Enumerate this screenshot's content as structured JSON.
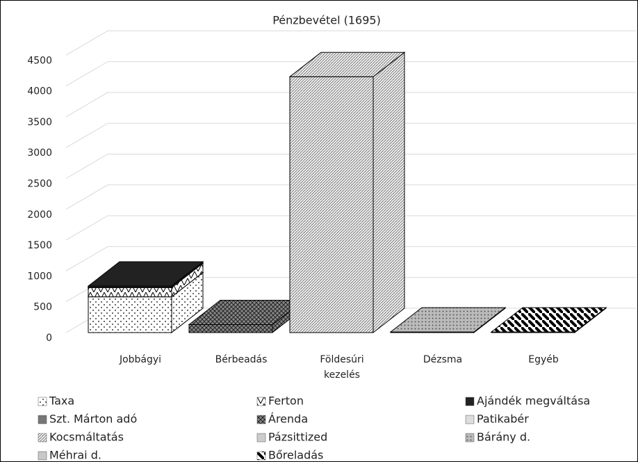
{
  "chart_data": {
    "type": "bar3d_stacked",
    "title": "Pénzbevétel (1695)",
    "categories": [
      "Jobbágyi",
      "Bérbeadás",
      "Földesúri kezelés",
      "Dézsma",
      "Egyéb"
    ],
    "series": [
      {
        "name": "Taxa",
        "color": "#ffffff",
        "values": [
          580,
          0,
          0,
          0,
          0
        ]
      },
      {
        "name": "Ferton",
        "color": "#e8e8e8",
        "values": [
          150,
          0,
          0,
          0,
          0
        ]
      },
      {
        "name": "Ajándék megváltása",
        "color": "#111111",
        "values": [
          25,
          0,
          0,
          0,
          0
        ]
      },
      {
        "name": "Szt. Márton adó",
        "color": "#777777",
        "values": [
          0,
          0,
          0,
          0,
          0
        ]
      },
      {
        "name": "Árenda",
        "color": "#999999",
        "values": [
          0,
          130,
          0,
          0,
          0
        ]
      },
      {
        "name": "Patikabér",
        "color": "#dddddd",
        "values": [
          0,
          0,
          0,
          0,
          0
        ]
      },
      {
        "name": "Kocsmáltatás",
        "color": "#bbbbbb",
        "values": [
          0,
          0,
          4150,
          0,
          0
        ]
      },
      {
        "name": "Pázsittized",
        "color": "#cccccc",
        "values": [
          0,
          0,
          0,
          0,
          0
        ]
      },
      {
        "name": "Bárány d.",
        "color": "#aaaaaa",
        "values": [
          0,
          0,
          0,
          10,
          0
        ]
      },
      {
        "name": "Méhrai d.",
        "color": "#c8c8c8",
        "values": [
          0,
          0,
          0,
          0,
          0
        ]
      },
      {
        "name": "Bőreladás",
        "color": "#555555",
        "values": [
          0,
          0,
          0,
          0,
          10
        ]
      }
    ],
    "ylim": [
      0,
      5000
    ],
    "yticks": [
      0,
      500,
      1000,
      1500,
      2000,
      2500,
      3000,
      3500,
      4000,
      4500
    ],
    "grid": true,
    "legend": "bottom"
  }
}
